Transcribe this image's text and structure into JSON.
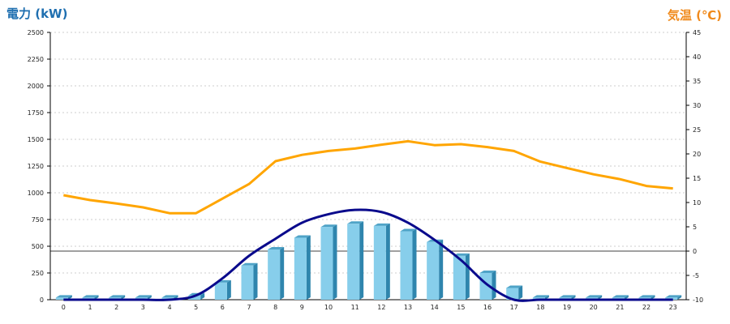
{
  "chart_data": {
    "type": "bar",
    "ylabel_left": "電力 (kW)",
    "ylabel_right": "気温 (℃)",
    "categories": [
      "0",
      "1",
      "2",
      "3",
      "4",
      "5",
      "6",
      "7",
      "8",
      "9",
      "10",
      "11",
      "12",
      "13",
      "14",
      "15",
      "16",
      "17",
      "18",
      "19",
      "20",
      "21",
      "22",
      "23"
    ],
    "ylim_left": [
      0,
      2500
    ],
    "yticks_left": [
      0,
      250,
      500,
      750,
      1000,
      1250,
      1500,
      1750,
      2000,
      2250,
      2500
    ],
    "ylim_right": [
      -10,
      45
    ],
    "yticks_right": [
      -10,
      -5,
      0,
      5,
      10,
      15,
      20,
      25,
      30,
      35,
      40,
      45
    ],
    "grid": true,
    "series": [
      {
        "type": "bar",
        "axis": "left",
        "color": "#87ceeb",
        "values": [
          20,
          20,
          20,
          20,
          20,
          40,
          160,
          320,
          470,
          580,
          680,
          710,
          690,
          640,
          540,
          410,
          250,
          110,
          20,
          20,
          20,
          20,
          20,
          20
        ]
      },
      {
        "type": "line",
        "axis": "left",
        "color": "#0a0a8c",
        "x": [
          0,
          1,
          2,
          3,
          4,
          5,
          6,
          7,
          8,
          9,
          10,
          11,
          12,
          13,
          14,
          15,
          16,
          17,
          18,
          19,
          20,
          21,
          22,
          23
        ],
        "values": [
          0,
          0,
          0,
          0,
          0,
          40,
          200,
          410,
          570,
          720,
          800,
          840,
          820,
          720,
          560,
          370,
          140,
          0,
          0,
          0,
          0,
          0,
          0,
          0
        ]
      },
      {
        "type": "line",
        "axis": "right",
        "color": "#ffa500",
        "values": [
          11.5,
          10.5,
          9.8,
          9.0,
          7.8,
          7.8,
          10.8,
          13.8,
          18.5,
          19.8,
          20.6,
          21.1,
          21.9,
          22.6,
          21.8,
          22.0,
          21.4,
          20.6,
          18.4,
          17.1,
          15.8,
          14.8,
          13.4,
          12.9
        ]
      }
    ]
  },
  "colors": {
    "axis_left_label": "#1f6fb0",
    "axis_right_label": "#f08a1c",
    "grid": "#bfbfbf"
  }
}
